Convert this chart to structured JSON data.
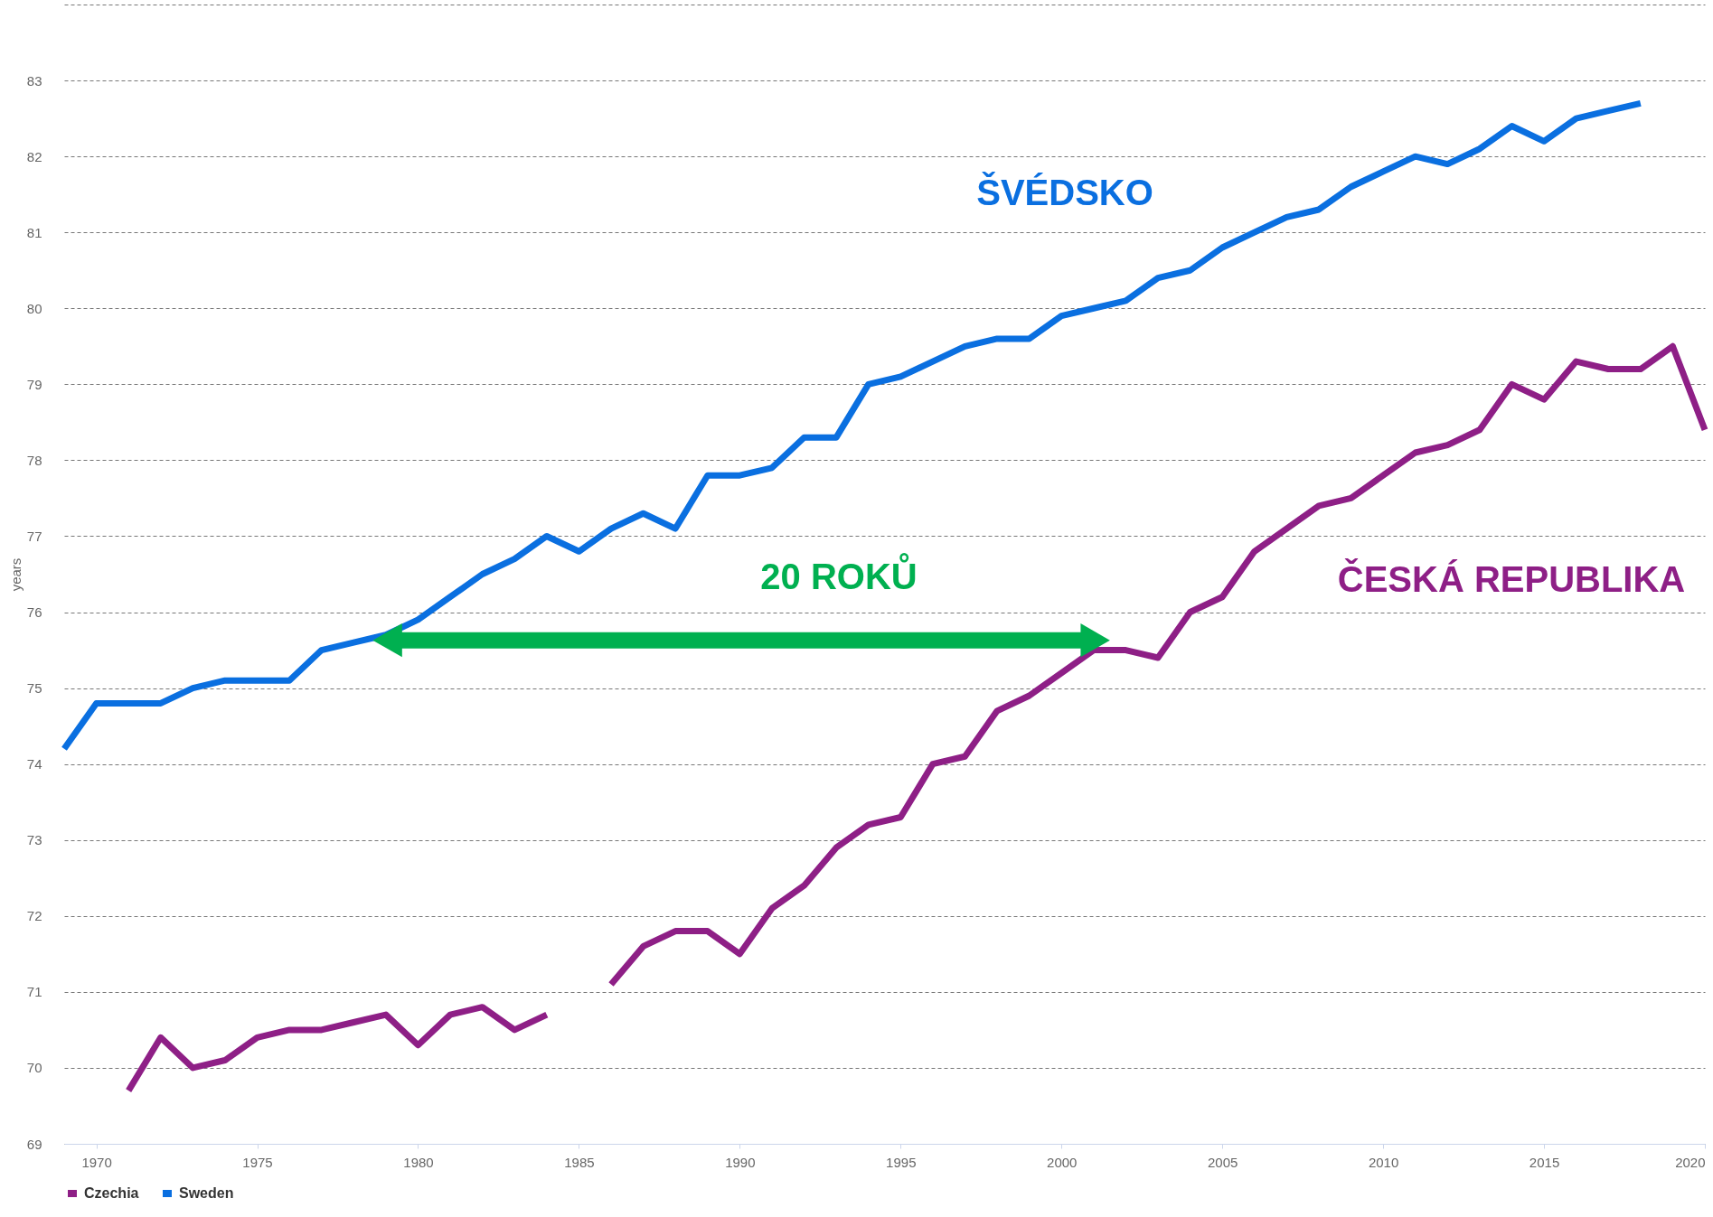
{
  "chart_data": {
    "type": "line",
    "ylabel": "years",
    "x": [
      1969,
      1970,
      1971,
      1972,
      1973,
      1974,
      1975,
      1976,
      1977,
      1978,
      1979,
      1980,
      1981,
      1982,
      1983,
      1984,
      1985,
      1986,
      1987,
      1988,
      1989,
      1990,
      1991,
      1992,
      1993,
      1994,
      1995,
      1996,
      1997,
      1998,
      1999,
      2000,
      2001,
      2002,
      2003,
      2004,
      2005,
      2006,
      2007,
      2008,
      2009,
      2010,
      2011,
      2012,
      2013,
      2014,
      2015,
      2016,
      2017,
      2018,
      2019,
      2020
    ],
    "series": [
      {
        "name": "Czechia",
        "color": "#8e1f86",
        "values": [
          null,
          null,
          69.7,
          70.4,
          70.0,
          70.1,
          70.4,
          70.5,
          70.5,
          70.6,
          70.7,
          70.3,
          70.7,
          70.8,
          70.5,
          70.7,
          null,
          71.1,
          71.6,
          71.8,
          71.8,
          71.5,
          72.1,
          72.4,
          72.9,
          73.2,
          73.3,
          74.0,
          74.1,
          74.7,
          74.9,
          75.2,
          75.5,
          75.5,
          75.4,
          76.0,
          76.2,
          76.8,
          77.1,
          77.4,
          77.5,
          77.8,
          78.1,
          78.2,
          78.4,
          79.0,
          78.8,
          79.3,
          79.2,
          79.2,
          79.5,
          78.4
        ]
      },
      {
        "name": "Sweden",
        "color": "#0a6fe0",
        "values": [
          74.2,
          74.8,
          74.8,
          74.8,
          75.0,
          75.1,
          75.1,
          75.1,
          75.5,
          75.6,
          75.7,
          75.9,
          76.2,
          76.5,
          76.7,
          77.0,
          76.8,
          77.1,
          77.3,
          77.1,
          77.8,
          77.8,
          77.9,
          78.3,
          78.3,
          79.0,
          79.1,
          79.3,
          79.5,
          79.6,
          79.6,
          79.9,
          80.0,
          80.1,
          80.4,
          80.5,
          80.8,
          81.0,
          81.2,
          81.3,
          81.6,
          81.8,
          82.0,
          81.9,
          82.1,
          82.4,
          82.2,
          82.5,
          82.6,
          82.7,
          null,
          null
        ]
      },
      {
        "type": "line",
        "color": "#00b050",
        "marker": "triangle",
        "x": [
          1979.2,
          2000.9
        ],
        "values": [
          75.63,
          75.63
        ]
      }
    ],
    "annotations": [
      "ČESKÁ REPUBLIKA",
      "ŠVÉDSKO",
      "20 ROKŮ"
    ],
    "xlim": [
      1969,
      2020
    ],
    "xticks": [
      1970,
      1975,
      1980,
      1985,
      1990,
      1995,
      2000,
      2005,
      2010,
      2015,
      2020
    ],
    "ylim": [
      69,
      84
    ],
    "yticks": [
      69,
      70,
      71,
      72,
      73,
      74,
      75,
      76,
      77,
      78,
      79,
      80,
      81,
      82,
      83,
      {
        "value": 84,
        "label": null
      }
    ],
    "grid": "y",
    "legend": "bottom",
    "line_style": "solid",
    "marker": "none"
  }
}
